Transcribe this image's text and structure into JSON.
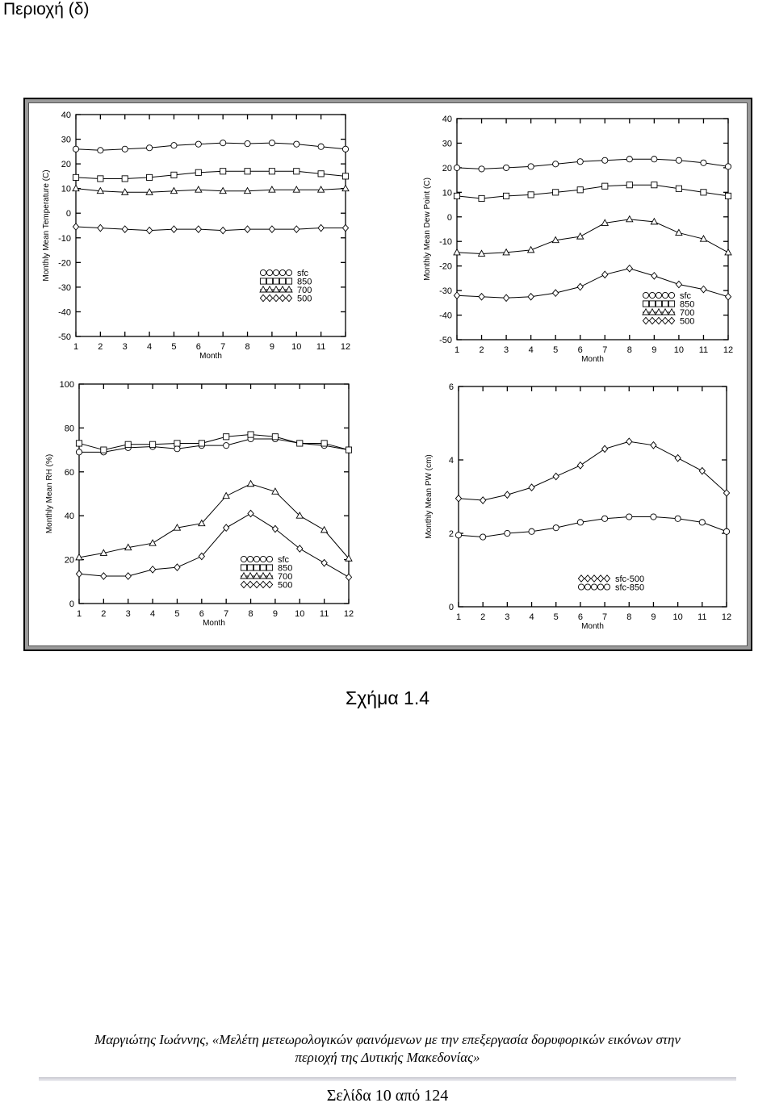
{
  "page": {
    "heading": "Περιοχή (δ)",
    "caption": "Σχήμα 1.4",
    "footer_line1": "Μαργιώτης Ιωάννης, «Μελέτη μετεωρολογικών φαινόμενων με την επεξεργασία δορυφορικών εικόνων στην",
    "footer_line2": "περιοχή της Δυτικής Μακεδονίας»",
    "page_number": "Σελίδα 10 από 124"
  },
  "chart_data": [
    {
      "type": "line",
      "ylabel": "Monthly Mean Temperature (C)",
      "xlabel": "Month",
      "x": [
        1,
        2,
        3,
        4,
        5,
        6,
        7,
        8,
        9,
        10,
        11,
        12
      ],
      "xlim": [
        1,
        12
      ],
      "ylim": [
        -50,
        40
      ],
      "yticks": [
        -50,
        -40,
        -30,
        -20,
        -10,
        0,
        10,
        20,
        30,
        40
      ],
      "legend_position": "lower-right",
      "series": [
        {
          "name": "sfc",
          "marker": "circle",
          "values": [
            26,
            25.5,
            26,
            26.5,
            27.5,
            28,
            28.5,
            28.2,
            28.5,
            28,
            27,
            26
          ]
        },
        {
          "name": "850",
          "marker": "square",
          "values": [
            14.5,
            14,
            14,
            14.5,
            15.5,
            16.5,
            17,
            17,
            17,
            17,
            16,
            15
          ]
        },
        {
          "name": "700",
          "marker": "triangle",
          "values": [
            10,
            9,
            8.5,
            8.5,
            9,
            9.5,
            9,
            9,
            9.5,
            9.5,
            9.5,
            10
          ]
        },
        {
          "name": "500",
          "marker": "diamond",
          "values": [
            -5.5,
            -6,
            -6.5,
            -7,
            -6.5,
            -6.5,
            -7,
            -6.5,
            -6.5,
            -6.5,
            -6,
            -6
          ]
        }
      ]
    },
    {
      "type": "line",
      "ylabel": "Monthly Mean Dew Point (C)",
      "xlabel": "Month",
      "x": [
        1,
        2,
        3,
        4,
        5,
        6,
        7,
        8,
        9,
        10,
        11,
        12
      ],
      "xlim": [
        1,
        12
      ],
      "ylim": [
        -50,
        40
      ],
      "yticks": [
        -50,
        -40,
        -30,
        -20,
        -10,
        0,
        10,
        20,
        30,
        40
      ],
      "legend_position": "lower-right",
      "series": [
        {
          "name": "sfc",
          "marker": "circle",
          "values": [
            20,
            19.5,
            20,
            20.5,
            21.5,
            22.5,
            23,
            23.5,
            23.5,
            23,
            22,
            20.5
          ]
        },
        {
          "name": "850",
          "marker": "square",
          "values": [
            8.5,
            7.5,
            8.5,
            9,
            10,
            11,
            12.5,
            13,
            13,
            11.5,
            10,
            8.5
          ]
        },
        {
          "name": "700",
          "marker": "triangle",
          "values": [
            -14.5,
            -15,
            -14.5,
            -13.5,
            -9.5,
            -8,
            -2.5,
            -1,
            -2,
            -6.5,
            -9,
            -14.5
          ]
        },
        {
          "name": "500",
          "marker": "diamond",
          "values": [
            -32,
            -32.5,
            -33,
            -32.5,
            -31,
            -28.5,
            -23.5,
            -21,
            -24,
            -27.5,
            -29.5,
            -32.5
          ]
        }
      ]
    },
    {
      "type": "line",
      "ylabel": "Monthly Mean RH (%)",
      "xlabel": "Month",
      "x": [
        1,
        2,
        3,
        4,
        5,
        6,
        7,
        8,
        9,
        10,
        11,
        12
      ],
      "xlim": [
        1,
        12
      ],
      "ylim": [
        0,
        100
      ],
      "yticks": [
        0,
        20,
        40,
        60,
        80,
        100
      ],
      "legend_position": "lower-right",
      "series": [
        {
          "name": "sfc",
          "marker": "circle",
          "values": [
            69,
            69,
            71,
            71.5,
            70.5,
            72,
            72,
            75,
            75,
            73,
            72,
            70
          ]
        },
        {
          "name": "850",
          "marker": "square",
          "values": [
            73,
            70,
            72.5,
            72.5,
            73,
            73,
            76,
            77,
            76,
            73,
            73,
            70
          ]
        },
        {
          "name": "700",
          "marker": "triangle",
          "values": [
            21,
            23,
            25.5,
            27.5,
            34.5,
            36.5,
            49,
            54.5,
            51,
            40,
            33.5,
            20.5
          ]
        },
        {
          "name": "500",
          "marker": "diamond",
          "values": [
            13.5,
            12.5,
            12.5,
            15.5,
            16.5,
            21.5,
            34.5,
            41,
            34,
            25,
            18.5,
            12
          ]
        }
      ]
    },
    {
      "type": "line",
      "ylabel": "Monthly Mean PW (cm)",
      "xlabel": "Month",
      "x": [
        1,
        2,
        3,
        4,
        5,
        6,
        7,
        8,
        9,
        10,
        11,
        12
      ],
      "xlim": [
        1,
        12
      ],
      "ylim": [
        0,
        6
      ],
      "yticks": [
        0,
        2,
        4,
        6
      ],
      "legend_position": "lower-right",
      "series": [
        {
          "name": "sfc-500",
          "marker": "diamond",
          "values": [
            2.95,
            2.9,
            3.05,
            3.25,
            3.55,
            3.85,
            4.3,
            4.5,
            4.4,
            4.05,
            3.7,
            3.1
          ]
        },
        {
          "name": "sfc-850",
          "marker": "circle",
          "values": [
            1.95,
            1.9,
            2.0,
            2.05,
            2.15,
            2.3,
            2.4,
            2.45,
            2.45,
            2.4,
            2.3,
            2.05
          ]
        }
      ]
    }
  ]
}
